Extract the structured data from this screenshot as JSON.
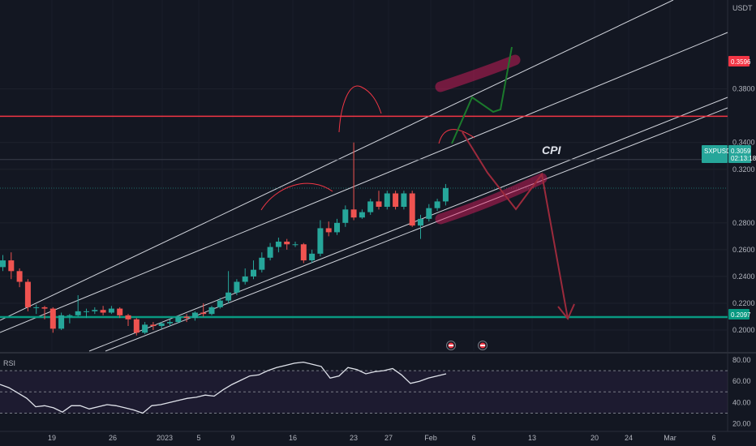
{
  "currency_label": "USDT",
  "symbol": "SXPUSDT",
  "price_axis": {
    "labels": [
      "0.3800",
      "0.3400",
      "0.3200",
      "0.2800",
      "0.2600",
      "0.2400",
      "0.2200",
      "0.2000"
    ],
    "values": [
      0.38,
      0.34,
      0.32,
      0.28,
      0.26,
      0.24,
      0.22,
      0.2
    ]
  },
  "resistance_level": {
    "label": "0.3596",
    "value": 0.3596,
    "color": "#f23645"
  },
  "support_level": {
    "label": "0.2097",
    "value": 0.2097,
    "color": "#089981"
  },
  "current_price": {
    "label": "0.3059",
    "value": 0.3059,
    "countdown": "02:13:18",
    "color": "#26a69a"
  },
  "annotation_text": "CPI",
  "time_axis": {
    "labels": [
      "19",
      "26",
      "2023",
      "5",
      "9",
      "16",
      "23",
      "27",
      "Feb",
      "6",
      "13",
      "20",
      "24",
      "Mar",
      "6"
    ]
  },
  "rsi": {
    "title": "RSI",
    "labels": [
      "80.00",
      "60.00",
      "40.00",
      "20.00"
    ],
    "values": [
      80,
      60,
      40,
      20
    ],
    "upper_band": 70,
    "mid_band": 50,
    "lower_band": 30,
    "series": [
      57,
      54,
      49,
      44,
      36,
      37,
      35,
      31,
      37,
      37,
      34,
      36,
      38,
      37,
      35,
      33,
      30,
      37,
      38,
      40,
      42,
      44,
      45,
      47,
      46,
      52,
      57,
      61,
      65,
      66,
      70,
      73,
      75,
      77,
      78,
      76,
      74,
      63,
      65,
      73,
      71,
      67,
      69,
      70,
      72,
      66,
      58,
      60,
      63,
      65,
      67
    ]
  },
  "candles": [
    [
      0.247,
      0.252,
      0.256,
      0.244
    ],
    [
      0.252,
      0.244,
      0.258,
      0.238
    ],
    [
      0.244,
      0.236,
      0.246,
      0.232
    ],
    [
      0.236,
      0.217,
      0.238,
      0.214
    ],
    [
      0.217,
      0.217,
      0.219,
      0.212
    ],
    [
      0.217,
      0.216,
      0.218,
      0.208
    ],
    [
      0.216,
      0.201,
      0.217,
      0.198
    ],
    [
      0.201,
      0.211,
      0.213,
      0.2
    ],
    [
      0.211,
      0.211,
      0.212,
      0.205
    ],
    [
      0.211,
      0.214,
      0.226,
      0.21
    ],
    [
      0.214,
      0.214,
      0.216,
      0.209
    ],
    [
      0.214,
      0.215,
      0.217,
      0.212
    ],
    [
      0.215,
      0.213,
      0.218,
      0.211
    ],
    [
      0.213,
      0.216,
      0.218,
      0.212
    ],
    [
      0.216,
      0.211,
      0.217,
      0.209
    ],
    [
      0.211,
      0.208,
      0.212,
      0.203
    ],
    [
      0.208,
      0.198,
      0.209,
      0.196
    ],
    [
      0.198,
      0.204,
      0.206,
      0.197
    ],
    [
      0.204,
      0.203,
      0.206,
      0.2
    ],
    [
      0.203,
      0.205,
      0.206,
      0.201
    ],
    [
      0.205,
      0.206,
      0.208,
      0.203
    ],
    [
      0.206,
      0.21,
      0.211,
      0.205
    ],
    [
      0.21,
      0.209,
      0.212,
      0.206
    ],
    [
      0.209,
      0.213,
      0.214,
      0.207
    ],
    [
      0.213,
      0.212,
      0.22,
      0.21
    ],
    [
      0.212,
      0.217,
      0.218,
      0.211
    ],
    [
      0.217,
      0.222,
      0.224,
      0.216
    ],
    [
      0.222,
      0.228,
      0.244,
      0.22
    ],
    [
      0.228,
      0.236,
      0.238,
      0.226
    ],
    [
      0.236,
      0.24,
      0.246,
      0.234
    ],
    [
      0.24,
      0.245,
      0.252,
      0.238
    ],
    [
      0.245,
      0.254,
      0.258,
      0.243
    ],
    [
      0.254,
      0.262,
      0.265,
      0.252
    ],
    [
      0.262,
      0.266,
      0.269,
      0.258
    ],
    [
      0.266,
      0.264,
      0.268,
      0.26
    ],
    [
      0.264,
      0.264,
      0.266,
      0.262
    ],
    [
      0.264,
      0.252,
      0.265,
      0.25
    ],
    [
      0.252,
      0.257,
      0.26,
      0.25
    ],
    [
      0.257,
      0.276,
      0.282,
      0.255
    ],
    [
      0.276,
      0.273,
      0.281,
      0.27
    ],
    [
      0.273,
      0.28,
      0.283,
      0.271
    ],
    [
      0.28,
      0.29,
      0.293,
      0.277
    ],
    [
      0.29,
      0.284,
      0.34,
      0.282
    ],
    [
      0.284,
      0.288,
      0.29,
      0.283
    ],
    [
      0.288,
      0.296,
      0.298,
      0.286
    ],
    [
      0.296,
      0.292,
      0.304,
      0.29
    ],
    [
      0.292,
      0.302,
      0.304,
      0.29
    ],
    [
      0.302,
      0.292,
      0.304,
      0.29
    ],
    [
      0.292,
      0.302,
      0.304,
      0.29
    ],
    [
      0.302,
      0.278,
      0.304,
      0.277
    ],
    [
      0.278,
      0.283,
      0.286,
      0.268
    ],
    [
      0.283,
      0.291,
      0.294,
      0.281
    ],
    [
      0.291,
      0.296,
      0.298,
      0.289
    ],
    [
      0.296,
      0.306,
      0.309,
      0.293
    ]
  ]
}
